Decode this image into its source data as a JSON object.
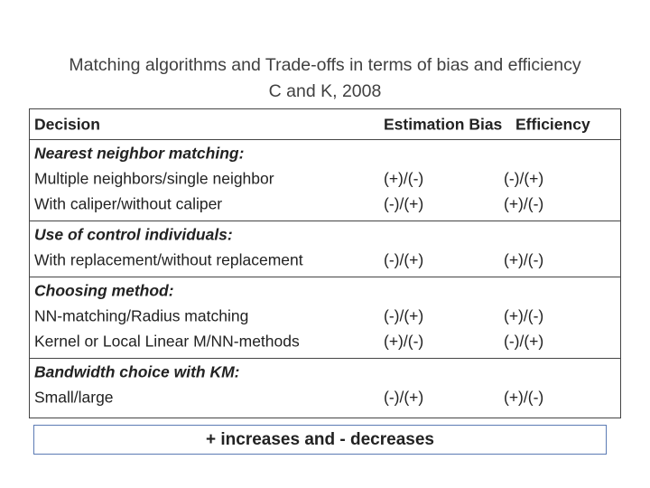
{
  "header": {
    "title": "Matching algorithms and Trade-offs in terms of bias and efficiency",
    "subtitle": "C and K, 2008"
  },
  "table": {
    "columns": [
      "Decision",
      "Estimation Bias",
      "Efficiency"
    ],
    "sections": [
      {
        "heading": "Nearest neighbor matching:",
        "rows": [
          [
            "Multiple neighbors/single neighbor",
            "(+)/(-)",
            "(-)/(+)"
          ],
          [
            "With caliper/without caliper",
            "(-)/(+)",
            "(+)/(-)"
          ]
        ]
      },
      {
        "heading": "Use of control individuals:",
        "rows": [
          [
            "With replacement/without replacement",
            "(-)/(+)",
            "(+)/(-)"
          ]
        ]
      },
      {
        "heading": "Choosing method:",
        "rows": [
          [
            "NN-matching/Radius matching",
            "(-)/(+)",
            "(+)/(-)"
          ],
          [
            "Kernel or Local Linear M/NN-methods",
            "(+)/(-)",
            "(-)/(+)"
          ]
        ]
      },
      {
        "heading": "Bandwidth choice with KM:",
        "rows": [
          [
            "Small/large",
            "(-)/(+)",
            "(+)/(-)"
          ]
        ]
      }
    ]
  },
  "footer": {
    "note": "+ increases and - decreases"
  }
}
